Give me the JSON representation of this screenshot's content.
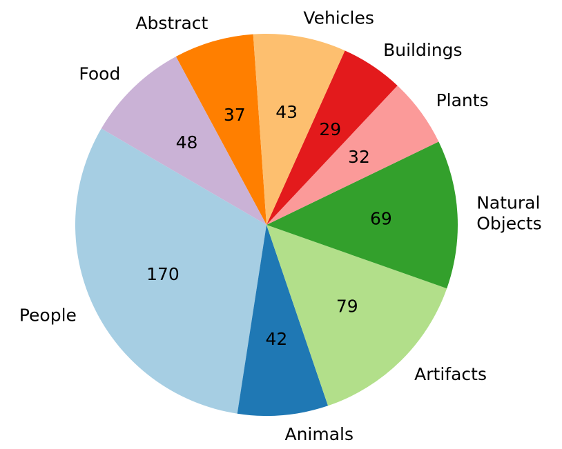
{
  "chart_data": {
    "type": "pie",
    "slices": [
      {
        "label": "Abstract",
        "value": 37,
        "color": "#ff7f00"
      },
      {
        "label": "Food",
        "value": 48,
        "color": "#cab2d6"
      },
      {
        "label": "People",
        "value": 170,
        "color": "#a6cee3"
      },
      {
        "label": "Animals",
        "value": 42,
        "color": "#1f78b4"
      },
      {
        "label": "Artifacts",
        "value": 79,
        "color": "#b2df8a"
      },
      {
        "label": "Natural\nObjects",
        "value": 69,
        "color": "#33a02c"
      },
      {
        "label": "Plants",
        "value": 32,
        "color": "#fb9a99"
      },
      {
        "label": "Buildings",
        "value": 29,
        "color": "#e31a1c"
      },
      {
        "label": "Vehicles",
        "value": 43,
        "color": "#fdbf6f"
      }
    ],
    "start_angle_deg": 94,
    "direction": "counterclockwise",
    "show_values": true,
    "legend": "none"
  }
}
